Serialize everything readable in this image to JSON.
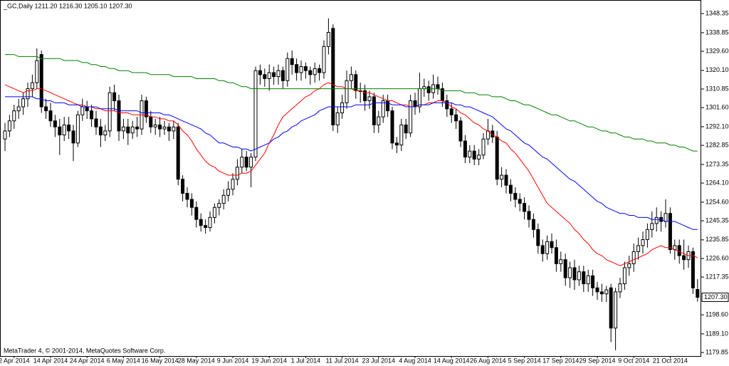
{
  "chart_data": {
    "type": "candlestick",
    "title": "_GC,Daily 1211.20 1216.30 1205.10 1207.30",
    "footer": "MetaTrader 4, © 2001-2014, MetaQuotes Software Corp.",
    "categories": [
      null,
      null,
      "2 Apr 2014",
      null,
      null,
      null,
      null,
      null,
      null,
      null,
      "14 Apr 2014",
      null,
      null,
      null,
      null,
      null,
      null,
      null,
      "24 Apr 2014",
      null,
      null,
      null,
      null,
      null,
      null,
      null,
      "6 May 2014",
      null,
      null,
      null,
      null,
      null,
      null,
      null,
      "16 May 2014",
      null,
      null,
      null,
      null,
      null,
      null,
      null,
      "28 May 2014",
      null,
      null,
      null,
      null,
      null,
      null,
      null,
      "9 Jun 2014",
      null,
      null,
      null,
      null,
      null,
      null,
      null,
      "19 Jun 2014",
      null,
      null,
      null,
      null,
      null,
      null,
      null,
      "1 Jul 2014",
      null,
      null,
      null,
      null,
      null,
      null,
      null,
      "11 Jul 2014",
      null,
      null,
      null,
      null,
      null,
      null,
      null,
      "23 Jul 2014",
      null,
      null,
      null,
      null,
      null,
      null,
      null,
      "4 Aug 2014",
      null,
      null,
      null,
      null,
      null,
      null,
      null,
      "14 Aug 2014",
      null,
      null,
      null,
      null,
      null,
      null,
      null,
      "26 Aug 2014",
      null,
      null,
      null,
      null,
      null,
      null,
      null,
      "5 Sep 2014",
      null,
      null,
      null,
      null,
      null,
      null,
      null,
      "17 Sep 2014",
      null,
      null,
      null,
      null,
      null,
      null,
      null,
      "29 Sep 2014",
      null,
      null,
      null,
      null,
      null,
      null,
      null,
      "9 Oct 2014",
      null,
      null,
      null,
      null,
      null,
      null,
      null,
      "21 Oct 2014",
      null,
      null,
      null,
      null,
      null,
      null
    ],
    "candles": {
      "up_color": "#ffffff",
      "down_color": "#000000",
      "open": [
        1286,
        1290,
        1295,
        1300,
        1302,
        1306,
        1311,
        1314,
        1328,
        1302,
        1300,
        1295,
        1292,
        1288,
        1293,
        1290,
        1284,
        1298,
        1302,
        1300,
        1296,
        1292,
        1288,
        1290,
        1309,
        1305,
        1290,
        1292,
        1289,
        1292,
        1291,
        1305,
        1297,
        1292,
        1293,
        1291,
        1292,
        1290,
        1292,
        1266,
        1259,
        1256,
        1252,
        1246,
        1243,
        1242,
        1247,
        1252,
        1254,
        1258,
        1261,
        1266,
        1272,
        1277,
        1272,
        1277,
        1320,
        1318,
        1316,
        1319,
        1317,
        1320,
        1315,
        1326,
        1323,
        1319,
        1322,
        1320,
        1318,
        1321,
        1319,
        1332,
        1341,
        1293,
        1299,
        1304,
        1315,
        1318,
        1310,
        1310,
        1305,
        1307,
        1293,
        1297,
        1305,
        1300,
        1284,
        1283,
        1293,
        1289,
        1305,
        1302,
        1311,
        1312,
        1309,
        1313,
        1311,
        1305,
        1301,
        1298,
        1295,
        1285,
        1277,
        1280,
        1276,
        1278,
        1286,
        1290,
        1287,
        1266,
        1268,
        1263,
        1259,
        1256,
        1254,
        1250,
        1246,
        1241,
        1233,
        1229,
        1235,
        1232,
        1224,
        1226,
        1217,
        1222,
        1216,
        1220,
        1214,
        1218,
        1212,
        1210,
        1209,
        1212,
        1192,
        1210,
        1214,
        1222,
        1224,
        1230,
        1233,
        1236,
        1241,
        1244,
        1247,
        1245,
        1249,
        1231,
        1233,
        1228,
        1226,
        1230,
        1211.2
      ],
      "high": [
        1294,
        1298,
        1303,
        1306,
        1309,
        1314,
        1318,
        1331,
        1330,
        1306,
        1304,
        1298,
        1296,
        1297,
        1297,
        1293,
        1300,
        1306,
        1305,
        1303,
        1300,
        1296,
        1293,
        1312,
        1313,
        1308,
        1296,
        1296,
        1295,
        1297,
        1308,
        1307,
        1300,
        1296,
        1297,
        1295,
        1294,
        1295,
        1294,
        1268,
        1262,
        1259,
        1255,
        1249,
        1246,
        1250,
        1254,
        1256,
        1261,
        1265,
        1269,
        1276,
        1281,
        1280,
        1279,
        1322,
        1323,
        1321,
        1323,
        1322,
        1323,
        1322,
        1329,
        1330,
        1326,
        1325,
        1324,
        1322,
        1324,
        1323,
        1335,
        1346,
        1343,
        1302,
        1308,
        1320,
        1322,
        1320,
        1314,
        1313,
        1310,
        1309,
        1300,
        1308,
        1308,
        1302,
        1287,
        1296,
        1296,
        1308,
        1309,
        1319,
        1316,
        1315,
        1318,
        1317,
        1314,
        1308,
        1304,
        1301,
        1297,
        1288,
        1283,
        1283,
        1281,
        1289,
        1296,
        1293,
        1290,
        1272,
        1271,
        1266,
        1262,
        1259,
        1257,
        1253,
        1249,
        1244,
        1236,
        1238,
        1239,
        1236,
        1230,
        1229,
        1225,
        1226,
        1223,
        1223,
        1221,
        1221,
        1215,
        1214,
        1213,
        1214,
        1212,
        1217,
        1225,
        1228,
        1234,
        1237,
        1240,
        1244,
        1250,
        1252,
        1250,
        1256,
        1252,
        1236,
        1236,
        1236,
        1233,
        1232,
        1216.3
      ],
      "low": [
        1280,
        1287,
        1291,
        1296,
        1298,
        1302,
        1307,
        1311,
        1299,
        1296,
        1292,
        1287,
        1278,
        1285,
        1286,
        1275,
        1282,
        1295,
        1296,
        1292,
        1288,
        1282,
        1285,
        1287,
        1300,
        1285,
        1286,
        1283,
        1286,
        1287,
        1288,
        1294,
        1289,
        1288,
        1287,
        1288,
        1285,
        1286,
        1263,
        1255,
        1252,
        1248,
        1242,
        1240,
        1239,
        1240,
        1244,
        1248,
        1251,
        1255,
        1258,
        1263,
        1269,
        1270,
        1262,
        1275,
        1313,
        1312,
        1310,
        1313,
        1313,
        1311,
        1312,
        1318,
        1315,
        1315,
        1316,
        1313,
        1314,
        1315,
        1316,
        1328,
        1290,
        1289,
        1296,
        1301,
        1311,
        1306,
        1304,
        1300,
        1301,
        1289,
        1289,
        1294,
        1297,
        1281,
        1279,
        1280,
        1286,
        1287,
        1298,
        1299,
        1307,
        1305,
        1306,
        1308,
        1302,
        1297,
        1294,
        1291,
        1282,
        1274,
        1274,
        1273,
        1273,
        1276,
        1283,
        1284,
        1263,
        1262,
        1259,
        1255,
        1252,
        1250,
        1246,
        1242,
        1237,
        1229,
        1225,
        1226,
        1229,
        1220,
        1220,
        1213,
        1212,
        1211,
        1213,
        1210,
        1210,
        1208,
        1206,
        1205,
        1205,
        1185,
        1181,
        1207,
        1211,
        1218,
        1220,
        1226,
        1229,
        1232,
        1237,
        1240,
        1240,
        1242,
        1229,
        1226,
        1224,
        1221,
        1222,
        1209,
        1205.1
      ],
      "close": [
        1290,
        1295,
        1300,
        1302,
        1306,
        1311,
        1314,
        1325,
        1302,
        1300,
        1295,
        1292,
        1288,
        1293,
        1290,
        1284,
        1298,
        1302,
        1300,
        1296,
        1292,
        1288,
        1290,
        1309,
        1305,
        1290,
        1292,
        1289,
        1292,
        1291,
        1305,
        1297,
        1292,
        1293,
        1291,
        1292,
        1290,
        1292,
        1266,
        1259,
        1256,
        1252,
        1246,
        1243,
        1242,
        1247,
        1252,
        1254,
        1258,
        1261,
        1266,
        1272,
        1277,
        1272,
        1277,
        1320,
        1318,
        1316,
        1319,
        1317,
        1320,
        1315,
        1326,
        1323,
        1319,
        1322,
        1320,
        1318,
        1321,
        1319,
        1332,
        1339,
        1293,
        1299,
        1304,
        1315,
        1318,
        1310,
        1310,
        1305,
        1307,
        1293,
        1297,
        1305,
        1300,
        1284,
        1283,
        1293,
        1289,
        1305,
        1302,
        1311,
        1312,
        1309,
        1313,
        1311,
        1305,
        1301,
        1298,
        1295,
        1285,
        1277,
        1280,
        1276,
        1278,
        1286,
        1290,
        1287,
        1266,
        1268,
        1263,
        1259,
        1256,
        1254,
        1250,
        1246,
        1241,
        1233,
        1229,
        1235,
        1232,
        1224,
        1226,
        1217,
        1222,
        1216,
        1220,
        1214,
        1218,
        1212,
        1210,
        1209,
        1211,
        1192,
        1210,
        1214,
        1222,
        1224,
        1230,
        1233,
        1236,
        1241,
        1244,
        1247,
        1245,
        1249,
        1231,
        1233,
        1228,
        1226,
        1230,
        1212,
        1207.3
      ]
    },
    "lines": [
      {
        "color": "#ff0000",
        "values": [
          1313,
          1312,
          1311,
          1310,
          1309,
          1310,
          1310,
          1311,
          1311,
          1310,
          1309,
          1308,
          1307,
          1306,
          1305,
          1304,
          1303,
          1303,
          1302,
          1302,
          1301,
          1301,
          1300,
          1300,
          1300,
          1299,
          1299,
          1299,
          1298,
          1298,
          1298,
          1298,
          1297,
          1297,
          1296,
          1296,
          1295,
          1295,
          1293,
          1290,
          1288,
          1285,
          1281,
          1278,
          1275,
          1273,
          1272,
          1270,
          1269,
          1268,
          1268,
          1268,
          1269,
          1269,
          1270,
          1273,
          1276,
          1279,
          1284,
          1288,
          1293,
          1297,
          1299,
          1301,
          1303,
          1305,
          1307,
          1308,
          1310,
          1311,
          1313,
          1314,
          1313,
          1312,
          1312,
          1311,
          1311,
          1310,
          1310,
          1309,
          1309,
          1308,
          1307,
          1306,
          1305,
          1305,
          1304,
          1303,
          1303,
          1302,
          1302,
          1303,
          1303,
          1304,
          1304,
          1305,
          1305,
          1304,
          1302,
          1301,
          1299,
          1298,
          1296,
          1294,
          1293,
          1291,
          1290,
          1288,
          1287,
          1285,
          1284,
          1281,
          1279,
          1276,
          1273,
          1270,
          1266,
          1262,
          1258,
          1254,
          1252,
          1250,
          1248,
          1246,
          1244,
          1241,
          1239,
          1236,
          1234,
          1231,
          1229,
          1228,
          1226,
          1225,
          1224,
          1223,
          1224,
          1225,
          1226,
          1227,
          1228,
          1229,
          1231,
          1232,
          1233,
          1232,
          1232,
          1231,
          1230,
          1229,
          1228,
          1228,
          1227
        ]
      },
      {
        "color": "#0000ff",
        "values": [
          1307,
          1307,
          1307,
          1307,
          1307,
          1307,
          1307,
          1306,
          1306,
          1305,
          1305,
          1304,
          1304,
          1304,
          1303,
          1303,
          1303,
          1302,
          1302,
          1302,
          1302,
          1301,
          1301,
          1301,
          1301,
          1300,
          1300,
          1300,
          1300,
          1300,
          1299,
          1299,
          1299,
          1299,
          1299,
          1298,
          1298,
          1297,
          1296,
          1295,
          1294,
          1293,
          1292,
          1291,
          1289,
          1288,
          1286,
          1284,
          1284,
          1283,
          1282,
          1282,
          1281,
          1281,
          1280,
          1281,
          1282,
          1283,
          1284,
          1286,
          1287,
          1289,
          1290,
          1292,
          1293,
          1295,
          1296,
          1297,
          1298,
          1300,
          1301,
          1302,
          1302,
          1302,
          1302,
          1302,
          1302,
          1303,
          1303,
          1303,
          1303,
          1304,
          1304,
          1304,
          1304,
          1303,
          1303,
          1303,
          1302,
          1302,
          1302,
          1303,
          1303,
          1303,
          1304,
          1304,
          1304,
          1304,
          1304,
          1303,
          1303,
          1302,
          1302,
          1301,
          1300,
          1299,
          1298,
          1297,
          1295,
          1293,
          1291,
          1290,
          1288,
          1286,
          1284,
          1283,
          1281,
          1279,
          1277,
          1276,
          1274,
          1272,
          1270,
          1268,
          1266,
          1265,
          1263,
          1261,
          1259,
          1257,
          1255,
          1254,
          1252,
          1251,
          1250,
          1249,
          1249,
          1248,
          1248,
          1247,
          1247,
          1247,
          1246,
          1246,
          1246,
          1245,
          1245,
          1245,
          1244,
          1243,
          1242,
          1241,
          1241
        ]
      },
      {
        "color": "#007f00",
        "values": [
          1328,
          1328,
          1328,
          1327,
          1327,
          1327,
          1327,
          1327,
          1326,
          1326,
          1326,
          1326,
          1326,
          1325,
          1325,
          1325,
          1325,
          1324,
          1324,
          1323,
          1323,
          1322,
          1322,
          1321,
          1321,
          1320,
          1320,
          1320,
          1319,
          1319,
          1319,
          1319,
          1318,
          1318,
          1318,
          1318,
          1318,
          1317,
          1317,
          1317,
          1317,
          1317,
          1316,
          1316,
          1316,
          1316,
          1316,
          1315,
          1315,
          1314,
          1314,
          1313,
          1312,
          1312,
          1311,
          1311,
          1311,
          1311,
          1311,
          1311,
          1311,
          1311,
          1311,
          1311,
          1311,
          1311,
          1311,
          1311,
          1311,
          1311,
          1311,
          1311,
          1311,
          1311,
          1311,
          1311,
          1311,
          1311,
          1311,
          1311,
          1311,
          1311,
          1311,
          1311,
          1311,
          1311,
          1311,
          1311,
          1311,
          1311,
          1311,
          1311,
          1311,
          1311,
          1311,
          1311,
          1310,
          1310,
          1310,
          1310,
          1310,
          1309,
          1309,
          1309,
          1308,
          1308,
          1308,
          1307,
          1307,
          1307,
          1306,
          1305,
          1305,
          1304,
          1303,
          1303,
          1302,
          1301,
          1300,
          1299,
          1298,
          1298,
          1297,
          1296,
          1295,
          1295,
          1294,
          1293,
          1292,
          1292,
          1291,
          1290,
          1290,
          1289,
          1289,
          1288,
          1287,
          1287,
          1286,
          1286,
          1286,
          1285,
          1285,
          1284,
          1284,
          1284,
          1283,
          1283,
          1282,
          1282,
          1281,
          1280,
          1280
        ]
      }
    ],
    "ylim": [
      1178.1,
      1355.1
    ],
    "yticks": [
      1348.35,
      1338.85,
      {
        "value": 1329.6,
        "label": "1329.60"
      },
      {
        "value": 1320.1,
        "label": "1320.10"
      },
      1310.85,
      {
        "value": 1301.6,
        "label": "1301.60"
      },
      {
        "value": 1292.1,
        "label": "1292.10"
      },
      1282.85,
      1273.35,
      {
        "value": 1264.1,
        "label": "1264.10"
      },
      {
        "value": 1254.6,
        "label": "1254.60"
      },
      1245.35,
      1235.85,
      {
        "value": 1226.6,
        "label": "1226.60"
      },
      1217.35,
      {
        "value": 1198.6,
        "label": "1198.60"
      },
      {
        "value": 1189.1,
        "label": "1189.10"
      },
      1179.85
    ],
    "last_price": {
      "value": 1207.3,
      "label": "1207.30"
    }
  }
}
